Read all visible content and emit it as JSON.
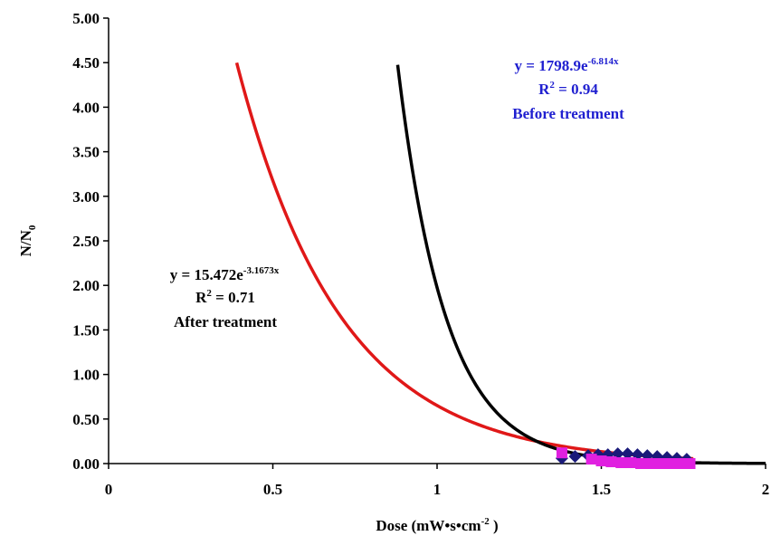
{
  "chart_data": {
    "type": "scatter",
    "xlabel_main": "Dose (mW•s•cm",
    "xlabel_sup": "-2",
    "xlabel_end": " )",
    "ylabel_main": "N/N",
    "ylabel_sub": "0",
    "xlim": [
      0,
      2
    ],
    "ylim": [
      0,
      5
    ],
    "x_ticks": [
      "0",
      "0.5",
      "1",
      "1.5",
      "2"
    ],
    "y_ticks": [
      "0.00",
      "0.50",
      "1.00",
      "1.50",
      "2.00",
      "2.50",
      "3.00",
      "3.50",
      "4.00",
      "4.50",
      "5.00"
    ],
    "grid": false,
    "series": [
      {
        "marker": "diamond",
        "color": "#1a1a7a",
        "x": [
          1.38,
          1.42,
          1.46,
          1.49,
          1.52,
          1.55,
          1.58,
          1.61,
          1.64,
          1.67,
          1.7,
          1.73,
          1.76
        ],
        "y": [
          0.06,
          0.08,
          0.09,
          0.1,
          0.1,
          0.11,
          0.11,
          0.1,
          0.09,
          0.08,
          0.07,
          0.06,
          0.05
        ]
      },
      {
        "marker": "square",
        "color": "#e020e0",
        "x": [
          1.38,
          1.47,
          1.5,
          1.53,
          1.56,
          1.59,
          1.62,
          1.65,
          1.68,
          1.71,
          1.74,
          1.77
        ],
        "y": [
          0.12,
          0.05,
          0.03,
          0.02,
          0.01,
          0.01,
          0.0,
          0.0,
          0.0,
          0.0,
          0.0,
          0.0
        ]
      }
    ],
    "fits": [
      {
        "color": "#e01818",
        "a": 15.472,
        "b": -3.1673,
        "x_from": 0.39,
        "x_to": 1.78
      },
      {
        "color": "#000000",
        "a": 1798.9,
        "b": -6.814,
        "x_from": 0.88,
        "x_to": 2.0
      }
    ],
    "annotations": {
      "before": {
        "eq_prefix": "y = 1798.9e",
        "eq_exp": "-6.814x",
        "r2_prefix": "R",
        "r2_sup": "2",
        "r2_value": " = 0.94",
        "label": "Before treatment",
        "color": "#1f1fd0"
      },
      "after": {
        "eq_prefix": "y = 15.472e",
        "eq_exp": "-3.1673x",
        "r2_prefix": "R",
        "r2_sup": "2",
        "r2_value": " = 0.71",
        "label": "After treatment",
        "color": "#000000"
      }
    }
  }
}
